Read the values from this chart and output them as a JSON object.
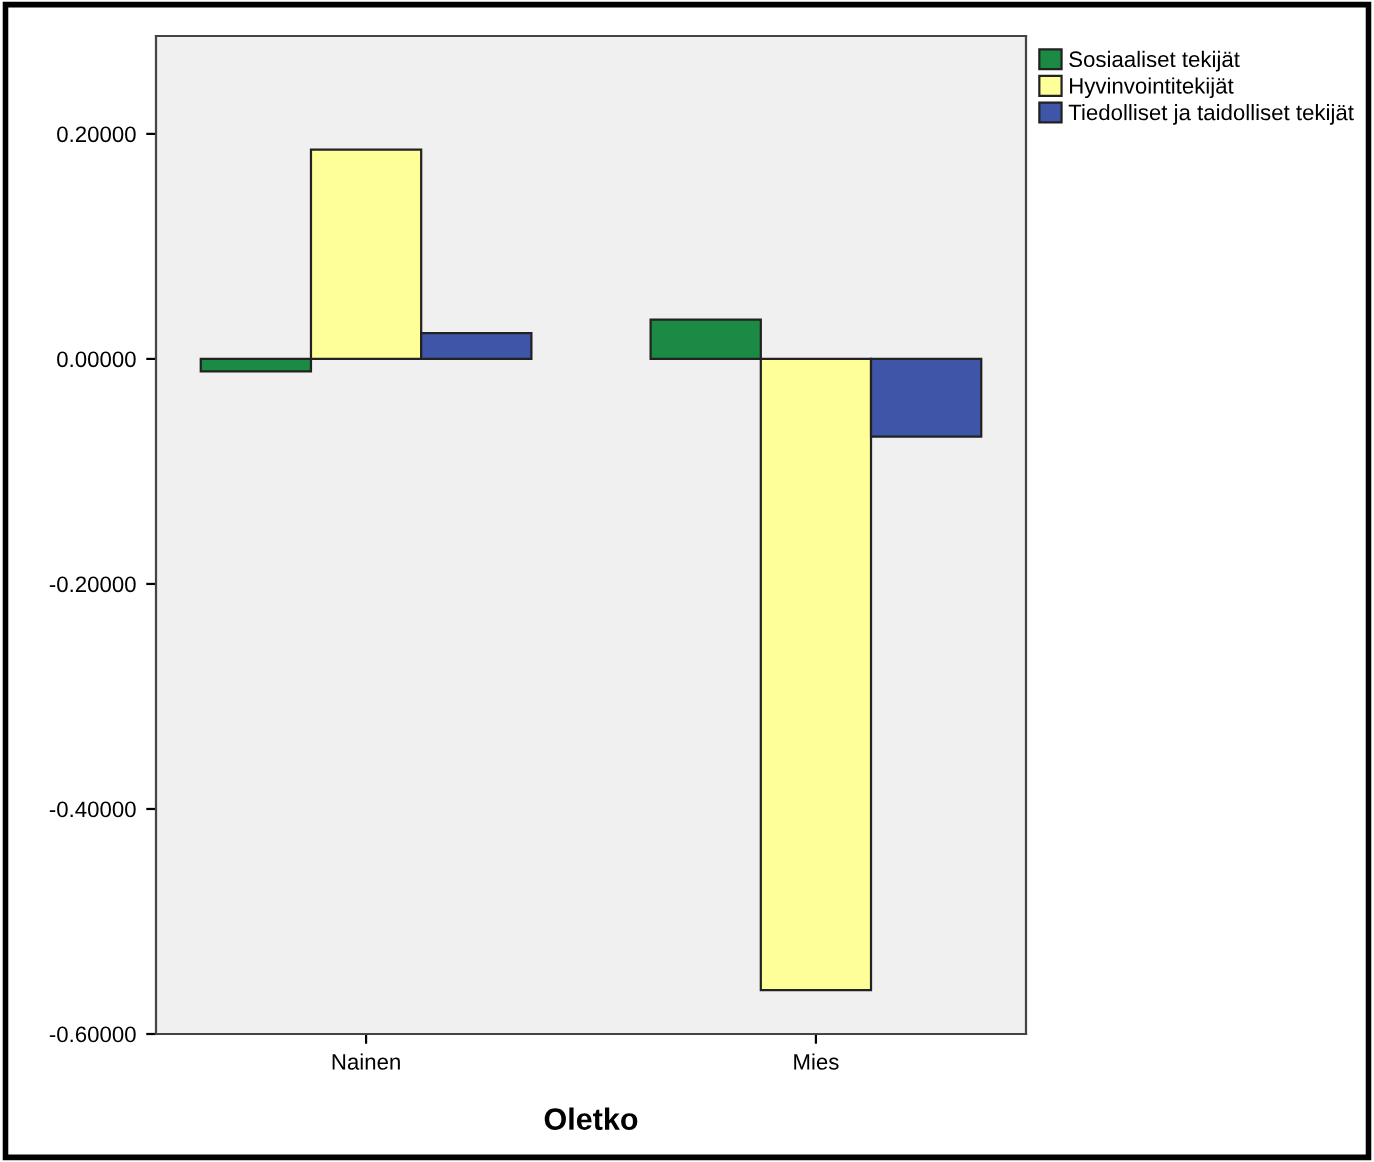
{
  "chart_data": {
    "type": "bar",
    "xlabel": "Oletko",
    "categories": [
      "Nainen",
      "Mies"
    ],
    "series": [
      {
        "name": "Sosiaaliset tekijät",
        "color": "#1a8a44",
        "values": [
          -0.011,
          0.035
        ]
      },
      {
        "name": "Hyvinvointitekijät",
        "color": "#ffff99",
        "values": [
          0.186,
          -0.561
        ]
      },
      {
        "name": "Tiedolliset ja taidolliset tekijät",
        "color": "#3f56a8",
        "values": [
          0.023,
          -0.069
        ]
      }
    ],
    "ylim": [
      -0.6,
      0.287
    ],
    "yticks": [
      {
        "value": -0.6,
        "label": "-0.60000"
      },
      {
        "value": -0.4,
        "label": "-0.40000"
      },
      {
        "value": -0.2,
        "label": "-0.20000"
      },
      {
        "value": 0,
        "label": "0.00000"
      },
      {
        "value": 0.2,
        "label": "0.20000"
      }
    ],
    "grid": false,
    "legend": "top right"
  }
}
